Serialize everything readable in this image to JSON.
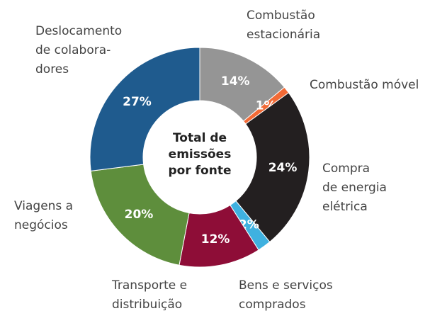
{
  "chart_data": {
    "type": "donut",
    "center_label": "Total de\nemissões\npor fonte",
    "categories": [
      "Combustão\nestacionária",
      "Combustão móvel",
      "Compra\nde energia\nelétrica",
      "Bens e serviços\ncomprados",
      "Transporte e\ndistribuição",
      "Viagens a\nnegócios",
      "Deslocamento\nde colabora-\ndores"
    ],
    "values": [
      14,
      1,
      24,
      2,
      12,
      20,
      27
    ],
    "value_labels": [
      "14%",
      "1%",
      "24%",
      "2%",
      "12%",
      "20%",
      "27%"
    ],
    "colors": [
      "#959595",
      "#f26a36",
      "#231f20",
      "#3fb1e0",
      "#8e0d37",
      "#5e8e3c",
      "#1f5b8e"
    ]
  }
}
